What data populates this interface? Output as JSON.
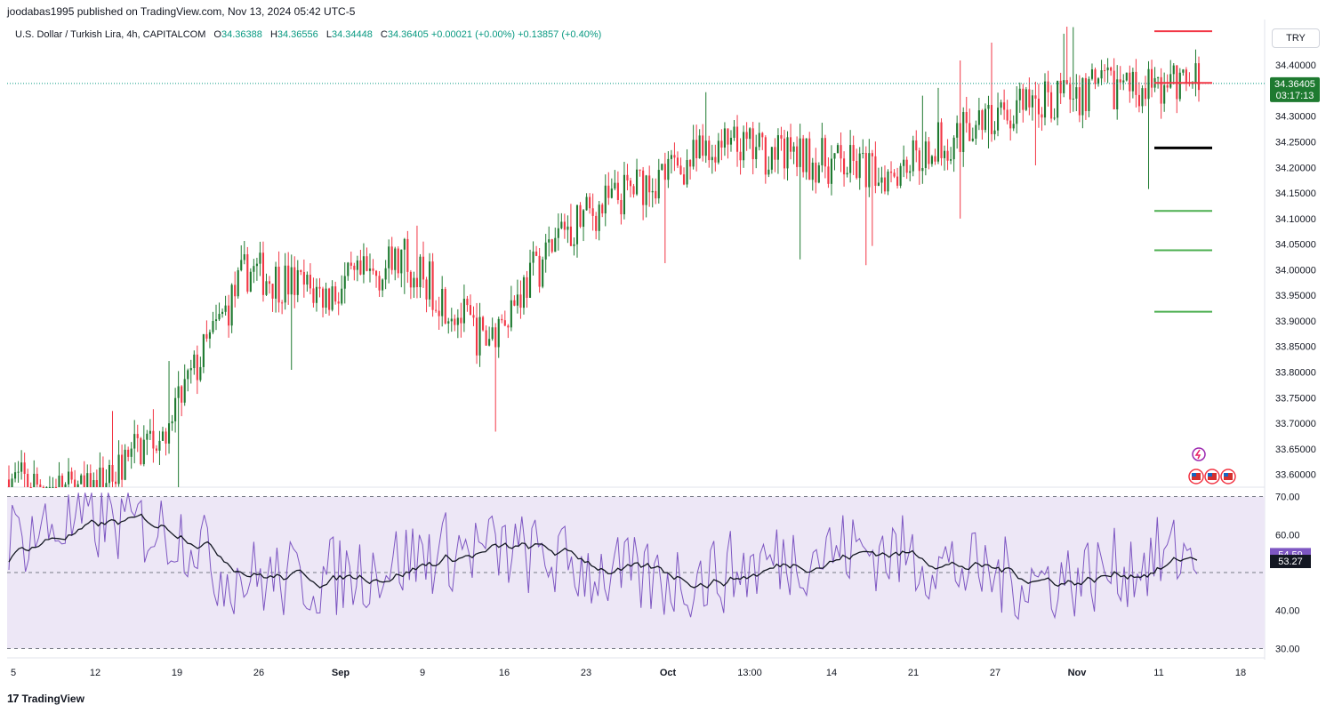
{
  "header": {
    "published_text": "joodabas1995 published on TradingView.com, Nov 13, 2024 05:42 UTC-5"
  },
  "symbol_bar": {
    "title": "U.S. Dollar / Turkish Lira, 4h, CAPITALCOM",
    "open_label": "O",
    "open": "34.36388",
    "high_label": "H",
    "high": "34.36556",
    "low_label": "L",
    "low": "34.34448",
    "close_label": "C",
    "close": "34.36405",
    "change": "+0.00021 (+0.00%)",
    "change2": "+0.13857 (+0.40%)"
  },
  "currency_button": "TRY",
  "price_badge": {
    "price": "34.36405",
    "countdown": "03:17:13"
  },
  "rsi_badges": {
    "rsi": "54.59",
    "ma": "53.27"
  },
  "footer": {
    "brand": "TradingView",
    "logo": "17"
  },
  "colors": {
    "up": "#1e7a30",
    "down": "#f23645",
    "rsi_line": "#7e57c2",
    "rsi_ma": "#131722",
    "rsi_band": "#ede7f6",
    "badge_price": "#1e7a30",
    "badge_rsi": "#7e57c2",
    "level_red": "#f23645",
    "level_green": "#4caf50",
    "level_black": "#000000"
  },
  "chart_data": [
    {
      "type": "candlestick",
      "title": "U.S. Dollar / Turkish Lira, 4h, CAPITALCOM",
      "ylim": [
        33.575,
        34.475
      ],
      "y_ticks": [
        "33.60000",
        "33.65000",
        "33.70000",
        "33.75000",
        "33.80000",
        "33.85000",
        "33.90000",
        "33.95000",
        "34.00000",
        "34.05000",
        "34.10000",
        "34.15000",
        "34.20000",
        "34.25000",
        "34.30000",
        "34.35000",
        "34.40000"
      ],
      "x_ticks": [
        "5",
        "12",
        "19",
        "26",
        "Sep",
        "9",
        "16",
        "23",
        "Oct",
        "13:00",
        "14",
        "21",
        "27",
        "Nov",
        "11",
        "18"
      ],
      "last_price": 34.36405,
      "horizontal_levels": [
        {
          "price": 34.466,
          "color": "red"
        },
        {
          "price": 34.365,
          "color": "red"
        },
        {
          "price": 34.238,
          "color": "black"
        },
        {
          "price": 34.115,
          "color": "green"
        },
        {
          "price": 34.038,
          "color": "green"
        },
        {
          "price": 33.918,
          "color": "green"
        }
      ],
      "trend_path": [
        {
          "t": "5",
          "close": 33.59
        },
        {
          "t": "12",
          "close": 33.56
        },
        {
          "t": "19",
          "close": 33.7
        },
        {
          "t": "26",
          "close": 34.0
        },
        {
          "t": "Sep",
          "close": 33.95
        },
        {
          "t": "9",
          "close": 34.02
        },
        {
          "t": "16",
          "close": 33.86
        },
        {
          "t": "23",
          "close": 34.08
        },
        {
          "t": "Oct",
          "close": 34.17
        },
        {
          "t": "13:00",
          "close": 34.24
        },
        {
          "t": "14",
          "close": 34.22
        },
        {
          "t": "21",
          "close": 34.19
        },
        {
          "t": "27",
          "close": 34.27
        },
        {
          "t": "Nov",
          "close": 34.33
        },
        {
          "t": "11",
          "close": 34.36
        },
        {
          "t": "18",
          "close": 34.364
        }
      ]
    },
    {
      "type": "line",
      "title": "RSI",
      "ylim": [
        28,
        72
      ],
      "y_ticks": [
        "30.00",
        "40.00",
        "60.00",
        "70.00"
      ],
      "bands": [
        30,
        50,
        70
      ],
      "series": [
        {
          "values_summary": "oscillating 31–71",
          "last": 54.59
        },
        {
          "values_summary": "smoothed average",
          "last": 53.27
        }
      ]
    }
  ]
}
